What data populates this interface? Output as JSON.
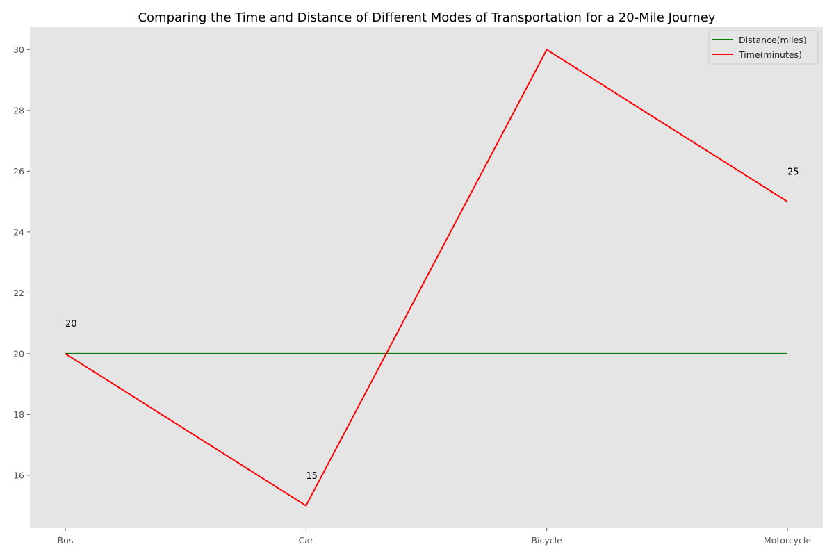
{
  "chart_data": {
    "type": "line",
    "title": "Comparing the Time and Distance of Different Modes of Transportation for a 20-Mile Journey",
    "xlabel": "",
    "ylabel": "",
    "categories": [
      "Bus",
      "Car",
      "Bicycle",
      "Motorcycle"
    ],
    "series": [
      {
        "name": "Distance(miles)",
        "values": [
          20,
          20,
          20,
          20
        ],
        "color": "#008000"
      },
      {
        "name": "Time(minutes)",
        "values": [
          20,
          15,
          30,
          25
        ],
        "color": "#ff0000"
      }
    ],
    "annotations": [
      {
        "category": "Bus",
        "text": "20"
      },
      {
        "category": "Car",
        "text": "15"
      },
      {
        "category": "Motorcycle",
        "text": "25"
      }
    ],
    "ylim": [
      14.26,
      30.74
    ],
    "yticks": [
      "16",
      "18",
      "20",
      "22",
      "24",
      "26",
      "28",
      "30"
    ],
    "grid": false,
    "legend_position": "top-right",
    "background_color": "#e5e5e5"
  }
}
